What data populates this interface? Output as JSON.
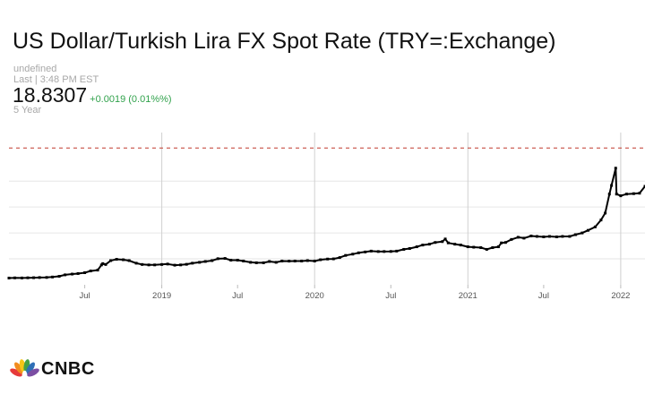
{
  "header": {
    "title": "US Dollar/Turkish Lira FX Spot Rate (TRY=:Exchange)",
    "source_label": "undefined",
    "last_label": "Last | 3:48 PM EST",
    "price": "18.8307",
    "change": "+0.0019 (0.01%%)",
    "range_label": "5 Year"
  },
  "footer": {
    "brand": "CNBC",
    "logo_icon": "cnbc-peacock-icon"
  },
  "colors": {
    "line": "#000000",
    "change_positive": "#31a24c",
    "reference_line": "#c0392b",
    "gridline": "#d0d0d0",
    "axis_text": "#555555",
    "watermark": "#f0f0f0"
  },
  "chart_data": {
    "type": "line",
    "x_tick_labels": [
      {
        "label": "Jul",
        "date": "2018-07-01"
      },
      {
        "label": "2019",
        "date": "2019-01-01"
      },
      {
        "label": "Jul",
        "date": "2019-07-01"
      },
      {
        "label": "2020",
        "date": "2020-01-01"
      },
      {
        "label": "Jul",
        "date": "2020-07-01"
      },
      {
        "label": "2021",
        "date": "2021-01-01"
      },
      {
        "label": "Jul",
        "date": "2021-07-01"
      },
      {
        "label": "2022",
        "date": "2022-01-01"
      }
    ],
    "xlim": [
      "2018-01-01",
      "2022-02-28"
    ],
    "ylim": [
      3,
      20
    ],
    "y_tick_labels_visible": false,
    "reference_line": {
      "value": 18.83,
      "style": "dashed"
    },
    "grid": {
      "vertical": true,
      "horizontal": true
    },
    "series": [
      {
        "x": [
          "2018-01-01",
          "2018-01-15",
          "2018-02-01",
          "2018-02-15",
          "2018-03-01",
          "2018-03-15",
          "2018-04-01",
          "2018-04-15",
          "2018-05-01",
          "2018-05-15",
          "2018-06-01",
          "2018-06-15",
          "2018-07-01",
          "2018-07-15",
          "2018-08-01",
          "2018-08-10",
          "2018-08-13",
          "2018-08-20",
          "2018-09-01",
          "2018-09-15",
          "2018-10-01",
          "2018-10-15",
          "2018-11-01",
          "2018-11-15",
          "2018-12-01",
          "2018-12-15",
          "2019-01-01",
          "2019-01-15",
          "2019-02-01",
          "2019-02-15",
          "2019-03-01",
          "2019-03-15",
          "2019-04-01",
          "2019-04-15",
          "2019-05-01",
          "2019-05-15",
          "2019-06-01",
          "2019-06-15",
          "2019-07-01",
          "2019-07-15",
          "2019-08-01",
          "2019-08-15",
          "2019-09-01",
          "2019-09-15",
          "2019-10-01",
          "2019-10-15",
          "2019-11-01",
          "2019-11-15",
          "2019-12-01",
          "2019-12-15",
          "2020-01-01",
          "2020-01-15",
          "2020-02-01",
          "2020-02-15",
          "2020-03-01",
          "2020-03-15",
          "2020-04-01",
          "2020-04-15",
          "2020-05-01",
          "2020-05-15",
          "2020-06-01",
          "2020-06-15",
          "2020-07-01",
          "2020-07-15",
          "2020-08-01",
          "2020-08-15",
          "2020-09-01",
          "2020-09-15",
          "2020-10-01",
          "2020-10-15",
          "2020-11-01",
          "2020-11-08",
          "2020-11-15",
          "2020-12-01",
          "2020-12-15",
          "2021-01-01",
          "2021-01-15",
          "2021-02-01",
          "2021-02-15",
          "2021-03-01",
          "2021-03-15",
          "2021-03-22",
          "2021-04-01",
          "2021-04-15",
          "2021-05-01",
          "2021-05-15",
          "2021-06-01",
          "2021-06-15",
          "2021-07-01",
          "2021-07-15",
          "2021-08-01",
          "2021-08-15",
          "2021-09-01",
          "2021-09-15",
          "2021-10-01",
          "2021-10-15",
          "2021-11-01",
          "2021-11-15",
          "2021-11-25",
          "2021-12-05",
          "2021-12-10",
          "2021-12-20",
          "2021-12-22",
          "2022-01-01",
          "2022-01-15",
          "2022-02-01",
          "2022-02-15",
          "2022-02-28"
        ],
        "y": [
          3.78,
          3.8,
          3.79,
          3.81,
          3.82,
          3.84,
          3.85,
          3.9,
          3.98,
          4.15,
          4.24,
          4.3,
          4.4,
          4.6,
          4.7,
          5.3,
          5.45,
          5.35,
          5.8,
          5.95,
          5.9,
          5.8,
          5.5,
          5.35,
          5.3,
          5.3,
          5.35,
          5.4,
          5.27,
          5.3,
          5.37,
          5.5,
          5.6,
          5.7,
          5.8,
          6.02,
          6.05,
          5.85,
          5.85,
          5.75,
          5.6,
          5.55,
          5.55,
          5.7,
          5.6,
          5.75,
          5.74,
          5.75,
          5.75,
          5.8,
          5.75,
          5.9,
          5.98,
          6.0,
          6.15,
          6.4,
          6.55,
          6.7,
          6.8,
          6.9,
          6.85,
          6.85,
          6.86,
          6.9,
          7.1,
          7.2,
          7.4,
          7.6,
          7.7,
          7.9,
          8.0,
          8.3,
          7.85,
          7.7,
          7.6,
          7.4,
          7.35,
          7.3,
          7.1,
          7.3,
          7.4,
          7.85,
          7.9,
          8.25,
          8.5,
          8.4,
          8.65,
          8.6,
          8.55,
          8.6,
          8.55,
          8.6,
          8.6,
          8.8,
          9.0,
          9.3,
          9.7,
          10.5,
          11.3,
          13.5,
          14.5,
          16.5,
          13.5,
          13.3,
          13.5,
          13.55,
          13.6,
          14.4
        ]
      }
    ]
  }
}
